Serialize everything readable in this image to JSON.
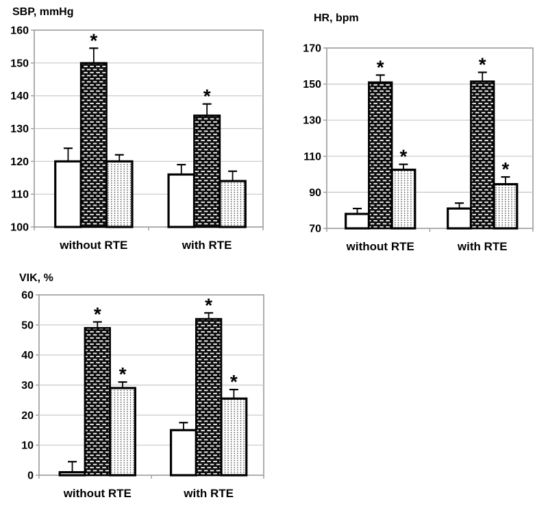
{
  "chart_data": [
    {
      "type": "bar",
      "title": "SBP, mmHg",
      "categories": [
        "without RTE",
        "with RTE"
      ],
      "series": [
        {
          "name": "open-white-bar",
          "pattern": "plain",
          "values": [
            120,
            116
          ],
          "errors": [
            4,
            3
          ],
          "significant": [
            false,
            false
          ]
        },
        {
          "name": "black-brick-hatched-bar",
          "pattern": "brick",
          "values": [
            150,
            134
          ],
          "errors": [
            4.5,
            3.5
          ],
          "significant": [
            true,
            true
          ]
        },
        {
          "name": "light-dotted-bar",
          "pattern": "dots",
          "values": [
            120,
            114
          ],
          "errors": [
            2,
            3
          ],
          "significant": [
            false,
            false
          ]
        }
      ],
      "ylim": [
        100,
        160
      ],
      "yticks": [
        100,
        110,
        120,
        130,
        140,
        150,
        160
      ],
      "grid": true,
      "legend": "none",
      "significance_marker": "*"
    },
    {
      "type": "bar",
      "title": "HR, bpm",
      "categories": [
        "without RTE",
        "with RTE"
      ],
      "series": [
        {
          "name": "open-white-bar",
          "pattern": "plain",
          "values": [
            78,
            81
          ],
          "errors": [
            3,
            3
          ],
          "significant": [
            false,
            false
          ]
        },
        {
          "name": "black-brick-hatched-bar",
          "pattern": "brick",
          "values": [
            151,
            151.5
          ],
          "errors": [
            4,
            5
          ],
          "significant": [
            true,
            true
          ]
        },
        {
          "name": "light-dotted-bar",
          "pattern": "dots",
          "values": [
            102.5,
            94.5
          ],
          "errors": [
            3,
            4
          ],
          "significant": [
            true,
            true
          ]
        }
      ],
      "ylim": [
        70,
        170
      ],
      "yticks": [
        70,
        90,
        110,
        130,
        150,
        170
      ],
      "grid": true,
      "legend": "none",
      "significance_marker": "*"
    },
    {
      "type": "bar",
      "title": "VIK, %",
      "categories": [
        "without RTE",
        "with RTE"
      ],
      "series": [
        {
          "name": "open-white-bar",
          "pattern": "plain",
          "values": [
            1,
            15
          ],
          "errors": [
            3.5,
            2.5
          ],
          "significant": [
            false,
            false
          ]
        },
        {
          "name": "black-brick-hatched-bar",
          "pattern": "brick",
          "values": [
            49,
            52
          ],
          "errors": [
            2,
            2
          ],
          "significant": [
            true,
            true
          ]
        },
        {
          "name": "light-dotted-bar",
          "pattern": "dots",
          "values": [
            29,
            25.5
          ],
          "errors": [
            2,
            3
          ],
          "significant": [
            true,
            true
          ]
        }
      ],
      "ylim": [
        0,
        60
      ],
      "yticks": [
        0,
        10,
        20,
        30,
        40,
        50,
        60
      ],
      "grid": true,
      "legend": "none",
      "significance_marker": "*"
    }
  ],
  "styles": {
    "background": "#ffffff",
    "text_color": "#000000",
    "grid_color": "#c6c6c6",
    "plot_border_color": "#999999",
    "bar_outline_color": "#000000",
    "brick_fill": "#0a0a0a",
    "brick_dash_color": "#f5f5f5",
    "dots_fill": "#ffffff",
    "dot_color": "#2e2e2e",
    "plain_fill": "#ffffff"
  }
}
